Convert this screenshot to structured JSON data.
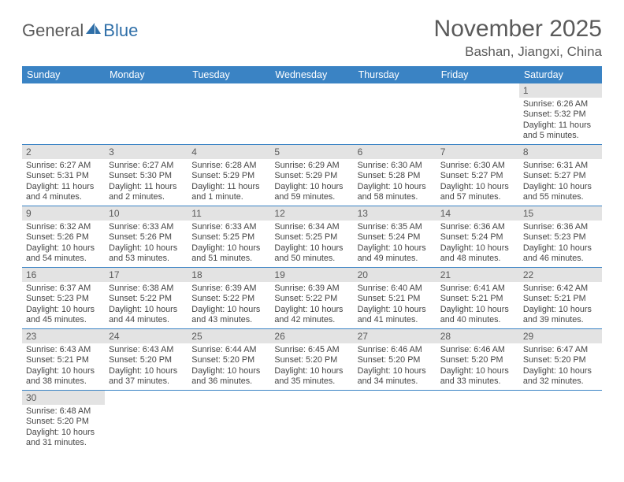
{
  "logo": {
    "text1": "General",
    "text2": "Blue"
  },
  "title": "November 2025",
  "location": "Bashan, Jiangxi, China",
  "colors": {
    "header_bg": "#3a83c4",
    "header_text": "#ffffff",
    "daynum_bg": "#e3e3e3",
    "text": "#5a5a5a",
    "border": "#3a83c4"
  },
  "weekdays": [
    "Sunday",
    "Monday",
    "Tuesday",
    "Wednesday",
    "Thursday",
    "Friday",
    "Saturday"
  ],
  "weeks": [
    [
      null,
      null,
      null,
      null,
      null,
      null,
      {
        "n": "1",
        "sunrise": "6:26 AM",
        "sunset": "5:32 PM",
        "daylight": "11 hours and 5 minutes."
      }
    ],
    [
      {
        "n": "2",
        "sunrise": "6:27 AM",
        "sunset": "5:31 PM",
        "daylight": "11 hours and 4 minutes."
      },
      {
        "n": "3",
        "sunrise": "6:27 AM",
        "sunset": "5:30 PM",
        "daylight": "11 hours and 2 minutes."
      },
      {
        "n": "4",
        "sunrise": "6:28 AM",
        "sunset": "5:29 PM",
        "daylight": "11 hours and 1 minute."
      },
      {
        "n": "5",
        "sunrise": "6:29 AM",
        "sunset": "5:29 PM",
        "daylight": "10 hours and 59 minutes."
      },
      {
        "n": "6",
        "sunrise": "6:30 AM",
        "sunset": "5:28 PM",
        "daylight": "10 hours and 58 minutes."
      },
      {
        "n": "7",
        "sunrise": "6:30 AM",
        "sunset": "5:27 PM",
        "daylight": "10 hours and 57 minutes."
      },
      {
        "n": "8",
        "sunrise": "6:31 AM",
        "sunset": "5:27 PM",
        "daylight": "10 hours and 55 minutes."
      }
    ],
    [
      {
        "n": "9",
        "sunrise": "6:32 AM",
        "sunset": "5:26 PM",
        "daylight": "10 hours and 54 minutes."
      },
      {
        "n": "10",
        "sunrise": "6:33 AM",
        "sunset": "5:26 PM",
        "daylight": "10 hours and 53 minutes."
      },
      {
        "n": "11",
        "sunrise": "6:33 AM",
        "sunset": "5:25 PM",
        "daylight": "10 hours and 51 minutes."
      },
      {
        "n": "12",
        "sunrise": "6:34 AM",
        "sunset": "5:25 PM",
        "daylight": "10 hours and 50 minutes."
      },
      {
        "n": "13",
        "sunrise": "6:35 AM",
        "sunset": "5:24 PM",
        "daylight": "10 hours and 49 minutes."
      },
      {
        "n": "14",
        "sunrise": "6:36 AM",
        "sunset": "5:24 PM",
        "daylight": "10 hours and 48 minutes."
      },
      {
        "n": "15",
        "sunrise": "6:36 AM",
        "sunset": "5:23 PM",
        "daylight": "10 hours and 46 minutes."
      }
    ],
    [
      {
        "n": "16",
        "sunrise": "6:37 AM",
        "sunset": "5:23 PM",
        "daylight": "10 hours and 45 minutes."
      },
      {
        "n": "17",
        "sunrise": "6:38 AM",
        "sunset": "5:22 PM",
        "daylight": "10 hours and 44 minutes."
      },
      {
        "n": "18",
        "sunrise": "6:39 AM",
        "sunset": "5:22 PM",
        "daylight": "10 hours and 43 minutes."
      },
      {
        "n": "19",
        "sunrise": "6:39 AM",
        "sunset": "5:22 PM",
        "daylight": "10 hours and 42 minutes."
      },
      {
        "n": "20",
        "sunrise": "6:40 AM",
        "sunset": "5:21 PM",
        "daylight": "10 hours and 41 minutes."
      },
      {
        "n": "21",
        "sunrise": "6:41 AM",
        "sunset": "5:21 PM",
        "daylight": "10 hours and 40 minutes."
      },
      {
        "n": "22",
        "sunrise": "6:42 AM",
        "sunset": "5:21 PM",
        "daylight": "10 hours and 39 minutes."
      }
    ],
    [
      {
        "n": "23",
        "sunrise": "6:43 AM",
        "sunset": "5:21 PM",
        "daylight": "10 hours and 38 minutes."
      },
      {
        "n": "24",
        "sunrise": "6:43 AM",
        "sunset": "5:20 PM",
        "daylight": "10 hours and 37 minutes."
      },
      {
        "n": "25",
        "sunrise": "6:44 AM",
        "sunset": "5:20 PM",
        "daylight": "10 hours and 36 minutes."
      },
      {
        "n": "26",
        "sunrise": "6:45 AM",
        "sunset": "5:20 PM",
        "daylight": "10 hours and 35 minutes."
      },
      {
        "n": "27",
        "sunrise": "6:46 AM",
        "sunset": "5:20 PM",
        "daylight": "10 hours and 34 minutes."
      },
      {
        "n": "28",
        "sunrise": "6:46 AM",
        "sunset": "5:20 PM",
        "daylight": "10 hours and 33 minutes."
      },
      {
        "n": "29",
        "sunrise": "6:47 AM",
        "sunset": "5:20 PM",
        "daylight": "10 hours and 32 minutes."
      }
    ],
    [
      {
        "n": "30",
        "sunrise": "6:48 AM",
        "sunset": "5:20 PM",
        "daylight": "10 hours and 31 minutes."
      },
      null,
      null,
      null,
      null,
      null,
      null
    ]
  ],
  "labels": {
    "sunrise": "Sunrise: ",
    "sunset": "Sunset: ",
    "daylight": "Daylight: "
  }
}
